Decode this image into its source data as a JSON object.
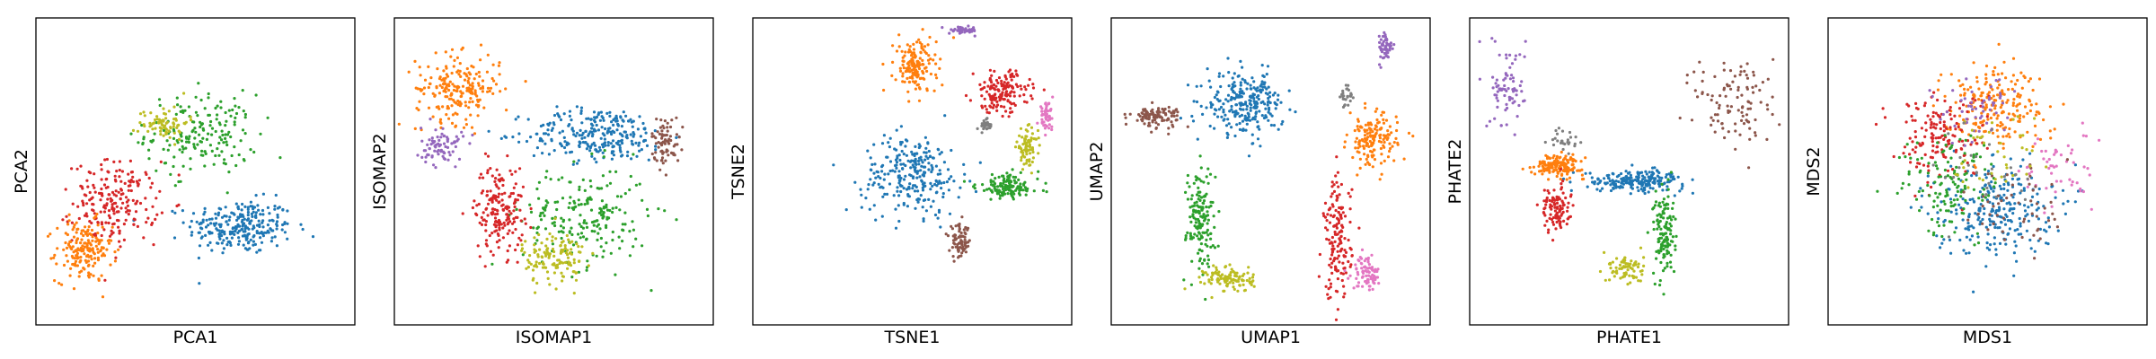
{
  "colors": {
    "blue": "#1f77b4",
    "orange": "#ff7f0e",
    "green": "#2ca02c",
    "red": "#d62728",
    "purple": "#9467bd",
    "brown": "#8c564b",
    "pink": "#e377c2",
    "gray": "#7f7f7f",
    "olive": "#bcbd22"
  },
  "chart_data": [
    {
      "type": "scatter",
      "xlabel": "PCA1",
      "ylabel": "PCA2",
      "ticks": "none",
      "grid": false,
      "legend": "none",
      "clusters": [
        {
          "color": "blue",
          "center": [
            0.64,
            0.32
          ],
          "spread": [
            0.15,
            0.08
          ],
          "density": 1.0
        },
        {
          "color": "green",
          "center": [
            0.52,
            0.62
          ],
          "spread": [
            0.16,
            0.12
          ],
          "density": 0.7
        },
        {
          "color": "red",
          "center": [
            0.25,
            0.4
          ],
          "spread": [
            0.12,
            0.12
          ],
          "density": 0.8
        },
        {
          "color": "orange",
          "center": [
            0.15,
            0.24
          ],
          "spread": [
            0.08,
            0.09
          ],
          "density": 0.7
        },
        {
          "color": "olive",
          "center": [
            0.4,
            0.66
          ],
          "spread": [
            0.07,
            0.05
          ],
          "density": 0.3
        }
      ]
    },
    {
      "type": "scatter",
      "xlabel": "ISOMAP1",
      "ylabel": "ISOMAP2",
      "ticks": "none",
      "grid": false,
      "legend": "none",
      "clusters": [
        {
          "color": "blue",
          "center": [
            0.64,
            0.62
          ],
          "spread": [
            0.2,
            0.08
          ],
          "density": 1.0
        },
        {
          "color": "orange",
          "center": [
            0.2,
            0.77
          ],
          "spread": [
            0.12,
            0.1
          ],
          "density": 0.8
        },
        {
          "color": "green",
          "center": [
            0.6,
            0.35
          ],
          "spread": [
            0.18,
            0.15
          ],
          "density": 0.8
        },
        {
          "color": "red",
          "center": [
            0.33,
            0.38
          ],
          "spread": [
            0.07,
            0.13
          ],
          "density": 0.7
        },
        {
          "color": "olive",
          "center": [
            0.5,
            0.22
          ],
          "spread": [
            0.09,
            0.08
          ],
          "density": 0.5
        },
        {
          "color": "purple",
          "center": [
            0.15,
            0.58
          ],
          "spread": [
            0.06,
            0.06
          ],
          "density": 0.3
        },
        {
          "color": "brown",
          "center": [
            0.85,
            0.6
          ],
          "spread": [
            0.04,
            0.07
          ],
          "density": 0.3
        }
      ]
    },
    {
      "type": "scatter",
      "xlabel": "TSNE1",
      "ylabel": "TSNE2",
      "ticks": "none",
      "grid": false,
      "legend": "none",
      "clusters": [
        {
          "color": "blue",
          "center": [
            0.5,
            0.49
          ],
          "spread": [
            0.14,
            0.12
          ],
          "density": 1.0
        },
        {
          "color": "orange",
          "center": [
            0.51,
            0.84
          ],
          "spread": [
            0.06,
            0.08
          ],
          "density": 0.6
        },
        {
          "color": "red",
          "center": [
            0.78,
            0.76
          ],
          "spread": [
            0.08,
            0.06
          ],
          "density": 0.6
        },
        {
          "color": "green",
          "center": [
            0.8,
            0.45
          ],
          "spread": [
            0.09,
            0.04
          ],
          "density": 0.5
        },
        {
          "color": "olive",
          "center": [
            0.86,
            0.58
          ],
          "spread": [
            0.03,
            0.05
          ],
          "density": 0.3
        },
        {
          "color": "pink",
          "center": [
            0.92,
            0.68
          ],
          "spread": [
            0.02,
            0.04
          ],
          "density": 0.2
        },
        {
          "color": "purple",
          "center": [
            0.66,
            0.96
          ],
          "spread": [
            0.04,
            0.01
          ],
          "density": 0.2
        },
        {
          "color": "brown",
          "center": [
            0.65,
            0.27
          ],
          "spread": [
            0.03,
            0.05
          ],
          "density": 0.3
        },
        {
          "color": "gray",
          "center": [
            0.73,
            0.65
          ],
          "spread": [
            0.02,
            0.02
          ],
          "density": 0.1
        }
      ]
    },
    {
      "type": "scatter",
      "xlabel": "UMAP1",
      "ylabel": "UMAP2",
      "ticks": "none",
      "grid": false,
      "legend": "none",
      "clusters": [
        {
          "color": "blue",
          "center": [
            0.42,
            0.72
          ],
          "spread": [
            0.11,
            0.09
          ],
          "density": 1.0
        },
        {
          "color": "brown",
          "center": [
            0.14,
            0.68
          ],
          "spread": [
            0.07,
            0.03
          ],
          "density": 0.4
        },
        {
          "color": "green",
          "center": [
            0.28,
            0.35
          ],
          "spread": [
            0.04,
            0.15
          ],
          "density": 0.6
        },
        {
          "color": "olive",
          "center": [
            0.37,
            0.15
          ],
          "spread": [
            0.07,
            0.04
          ],
          "density": 0.4
        },
        {
          "color": "red",
          "center": [
            0.71,
            0.28
          ],
          "spread": [
            0.04,
            0.18
          ],
          "density": 0.6
        },
        {
          "color": "orange",
          "center": [
            0.82,
            0.6
          ],
          "spread": [
            0.07,
            0.08
          ],
          "density": 0.6
        },
        {
          "color": "pink",
          "center": [
            0.8,
            0.17
          ],
          "spread": [
            0.04,
            0.05
          ],
          "density": 0.3
        },
        {
          "color": "purple",
          "center": [
            0.86,
            0.9
          ],
          "spread": [
            0.02,
            0.05
          ],
          "density": 0.2
        },
        {
          "color": "gray",
          "center": [
            0.74,
            0.74
          ],
          "spread": [
            0.02,
            0.04
          ],
          "density": 0.1
        }
      ]
    },
    {
      "type": "scatter",
      "xlabel": "PHATE1",
      "ylabel": "PHATE2",
      "ticks": "none",
      "grid": false,
      "legend": "none",
      "clusters": [
        {
          "color": "blue",
          "center": [
            0.52,
            0.47
          ],
          "spread": [
            0.14,
            0.03
          ],
          "density": 0.8
        },
        {
          "color": "orange",
          "center": [
            0.28,
            0.52
          ],
          "spread": [
            0.07,
            0.03
          ],
          "density": 0.6
        },
        {
          "color": "red",
          "center": [
            0.27,
            0.38
          ],
          "spread": [
            0.04,
            0.07
          ],
          "density": 0.4
        },
        {
          "color": "green",
          "center": [
            0.61,
            0.3
          ],
          "spread": [
            0.03,
            0.13
          ],
          "density": 0.5
        },
        {
          "color": "olive",
          "center": [
            0.49,
            0.18
          ],
          "spread": [
            0.05,
            0.05
          ],
          "density": 0.3
        },
        {
          "color": "purple",
          "center": [
            0.12,
            0.78
          ],
          "spread": [
            0.05,
            0.12
          ],
          "density": 0.3
        },
        {
          "color": "brown",
          "center": [
            0.84,
            0.72
          ],
          "spread": [
            0.12,
            0.16
          ],
          "density": 0.4
        },
        {
          "color": "gray",
          "center": [
            0.3,
            0.6
          ],
          "spread": [
            0.04,
            0.04
          ],
          "density": 0.1
        }
      ]
    },
    {
      "type": "scatter",
      "xlabel": "MDS1",
      "ylabel": "MDS2",
      "ticks": "none",
      "grid": false,
      "legend": "none",
      "clusters": [
        {
          "color": "blue",
          "center": [
            0.52,
            0.38
          ],
          "spread": [
            0.17,
            0.14
          ],
          "density": 1.0
        },
        {
          "color": "orange",
          "center": [
            0.52,
            0.72
          ],
          "spread": [
            0.15,
            0.12
          ],
          "density": 0.8
        },
        {
          "color": "red",
          "center": [
            0.35,
            0.62
          ],
          "spread": [
            0.13,
            0.13
          ],
          "density": 0.6
        },
        {
          "color": "green",
          "center": [
            0.38,
            0.45
          ],
          "spread": [
            0.14,
            0.15
          ],
          "density": 0.5
        },
        {
          "color": "purple",
          "center": [
            0.45,
            0.7
          ],
          "spread": [
            0.12,
            0.1
          ],
          "density": 0.2
        },
        {
          "color": "pink",
          "center": [
            0.72,
            0.5
          ],
          "spread": [
            0.1,
            0.12
          ],
          "density": 0.2
        },
        {
          "color": "brown",
          "center": [
            0.6,
            0.4
          ],
          "spread": [
            0.15,
            0.15
          ],
          "density": 0.2
        },
        {
          "color": "olive",
          "center": [
            0.55,
            0.55
          ],
          "spread": [
            0.15,
            0.15
          ],
          "density": 0.15
        },
        {
          "color": "gray",
          "center": [
            0.5,
            0.5
          ],
          "spread": [
            0.15,
            0.15
          ],
          "density": 0.1
        }
      ]
    }
  ]
}
